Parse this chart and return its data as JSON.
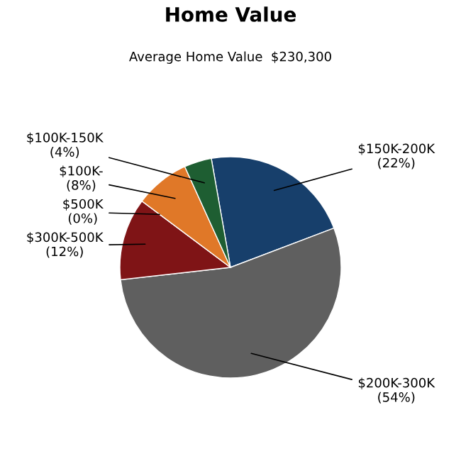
{
  "chart_data": {
    "type": "pie",
    "title": "Home Value",
    "subtitle": "Average Home Value  $230,300",
    "categories": [
      "$150K-200K",
      "$200K-300K",
      "$300K-500K",
      "$500K",
      "$100K-",
      "$100K-150K"
    ],
    "values": [
      22,
      54,
      12,
      0,
      8,
      4
    ],
    "value_labels": [
      "(22%)",
      "(54%)",
      "(12%)",
      "(0%)",
      "(8%)",
      "(4%)"
    ],
    "colors": [
      "#173f6b",
      "#5f5f5f",
      "#7f1416",
      "#c8c8c8",
      "#e07828",
      "#1e5e32"
    ],
    "legend": false
  }
}
